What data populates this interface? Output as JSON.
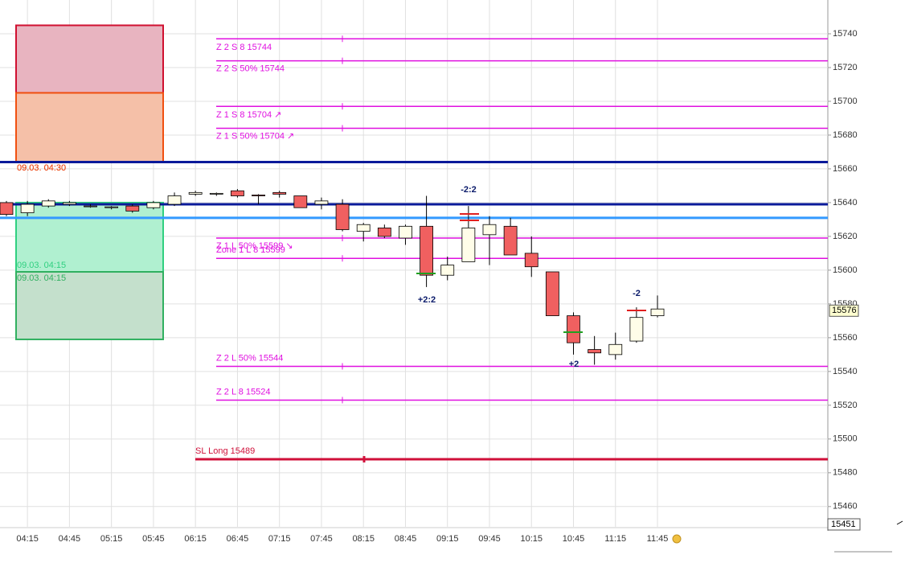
{
  "chart_data": {
    "type": "candlestick",
    "categories": [
      null,
      "04:15",
      null,
      "04:45",
      null,
      "05:15",
      null,
      "05:45",
      null,
      "06:15",
      null,
      "06:45",
      null,
      "07:15",
      null,
      "07:45",
      null,
      "08:15",
      null,
      "08:45",
      null,
      "09:15",
      null,
      "09:45",
      null,
      "10:15",
      null,
      "10:45",
      null,
      "11:15",
      null,
      "11:45"
    ],
    "open": [
      15640,
      15634,
      15638,
      15639,
      15638,
      15637,
      15638,
      15637,
      15639,
      15645,
      15645,
      15647,
      15644.5,
      15646,
      15644,
      15639,
      15639,
      15623,
      15625,
      15619,
      15626,
      15597,
      15605,
      15621,
      15626,
      15610,
      15599,
      15573,
      15553,
      15550,
      15558,
      15573
    ],
    "high": [
      15641,
      15641,
      15642,
      15641,
      15639,
      15638,
      15639,
      15641,
      15646,
      15647,
      15646,
      15648,
      15645,
      15647,
      15644,
      15643,
      15642,
      15628,
      15627,
      15627,
      15644,
      15608,
      15638,
      15632,
      15631,
      15620,
      15599,
      15575,
      15561,
      15563,
      15578,
      15585
    ],
    "low": [
      15632,
      15632,
      15637,
      15638,
      15637,
      15636,
      15634,
      15636,
      15638,
      15644,
      15644,
      15643,
      15639,
      15643,
      15637,
      15636,
      15623,
      15617,
      15619,
      15615,
      15590,
      15594,
      15605,
      15603,
      15609,
      15596,
      15573,
      15550,
      15544,
      15547,
      15557,
      15572
    ],
    "close": [
      15633,
      15639,
      15641,
      15640,
      15638,
      15637.5,
      15635,
      15640,
      15644,
      15646,
      15645.5,
      15644,
      15644,
      15645,
      15637,
      15641,
      15624,
      15627,
      15620,
      15626,
      15597,
      15603,
      15625,
      15627,
      15609,
      15602,
      15573,
      15557,
      15551,
      15556,
      15572,
      15577
    ],
    "up_color": "#fffde8",
    "down_color": "#f06060",
    "ylim": [
      15448,
      15760
    ],
    "yticks": [
      15460,
      15480,
      15500,
      15520,
      15540,
      15560,
      15580,
      15600,
      15620,
      15640,
      15660,
      15680,
      15700,
      15720,
      15740
    ],
    "grid": true,
    "levels": [
      {
        "label": "Z 2 S 8 15744",
        "value": 15737,
        "color": "#e010e0"
      },
      {
        "label": "Z 2 S 50% 15744",
        "value": 15724,
        "color": "#e010e0"
      },
      {
        "label": "Z 1 S 8 15704 ↗",
        "value": 15697,
        "color": "#e010e0"
      },
      {
        "label": "Z 1 S 50% 15704 ↗",
        "value": 15684,
        "color": "#e010e0"
      },
      {
        "value": 15664,
        "color": "#0a1a9a"
      },
      {
        "value": 15639,
        "color": "#0a1a9a"
      },
      {
        "value": 15631,
        "color": "#3399ff"
      },
      {
        "label": "Z 1 L 50% 15599 ↘",
        "value": 15619,
        "color": "#e010e0"
      },
      {
        "label": "Zone 1 L 8 15599",
        "value": 15607,
        "color": "#e010e0"
      },
      {
        "label": "Z 2 L 50% 15544",
        "value": 15543,
        "color": "#e010e0"
      },
      {
        "label": "Z 2 L 8 15524",
        "value": 15523,
        "color": "#e010e0"
      },
      {
        "label": "SL Long 15489",
        "value": 15488,
        "color": "#d0103a"
      }
    ],
    "zones": [
      {
        "label": "09.03. 04:30",
        "top": 15745,
        "bottom": 15705,
        "color": "#e8b4c0",
        "border": "#d01030"
      },
      {
        "label": "09.03. 04:30",
        "top": 15705,
        "bottom": 15664,
        "color": "#f5c0a8",
        "border": "#f05010"
      },
      {
        "label": "09.03. 04:15",
        "top": 15640,
        "bottom": 15599,
        "color": "#b0f0d0",
        "border": "#30d080"
      },
      {
        "label": "09.03. 04:15",
        "top": 15599,
        "bottom": 15559,
        "color": "#c4e0cc",
        "border": "#30b060"
      }
    ],
    "annotations": [
      {
        "text": "-2:2"
      },
      {
        "text": "+2:2"
      },
      {
        "text": "-2"
      },
      {
        "text": "+2"
      }
    ],
    "last_price": 15576,
    "bottom_price": 15451
  }
}
